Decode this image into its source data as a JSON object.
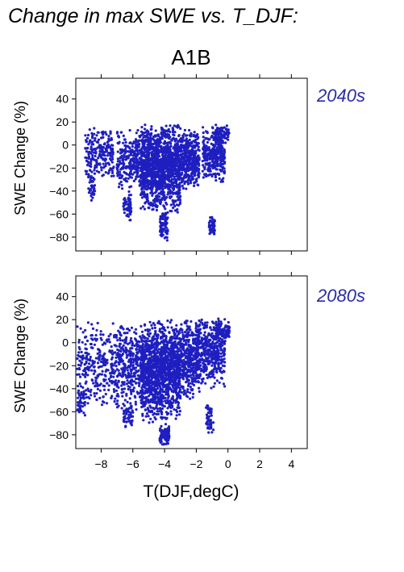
{
  "heading": "Change in max SWE vs. T_DJF:",
  "colors": {
    "points": "#1f1fc0",
    "period_label": "#2a2aa8",
    "axis": "#000000"
  },
  "chart_data": [
    {
      "type": "scatter",
      "title": "A1B",
      "panel_label": "2040s",
      "xlabel": "",
      "ylabel": "SWE Change (%)",
      "xlim": [
        -9.6,
        5
      ],
      "ylim": [
        -92,
        58
      ],
      "yticks": [
        40,
        20,
        0,
        -20,
        -40,
        -60,
        -80
      ],
      "grid": false,
      "clusters": [
        {
          "x": [
            -9.0,
            -7.2
          ],
          "y": [
            -30,
            15
          ],
          "n": 220
        },
        {
          "x": [
            -8.8,
            -8.4
          ],
          "y": [
            -50,
            -20
          ],
          "n": 40
        },
        {
          "x": [
            -7.0,
            -5.5
          ],
          "y": [
            -40,
            15
          ],
          "n": 260
        },
        {
          "x": [
            -6.6,
            -6.1
          ],
          "y": [
            -68,
            -40
          ],
          "n": 60
        },
        {
          "x": [
            -5.5,
            -3.0
          ],
          "y": [
            -60,
            20
          ],
          "n": 1300
        },
        {
          "x": [
            -4.3,
            -3.8
          ],
          "y": [
            -86,
            -55
          ],
          "n": 70
        },
        {
          "x": [
            -3.0,
            -1.8
          ],
          "y": [
            -40,
            15
          ],
          "n": 380
        },
        {
          "x": [
            -1.6,
            -0.2
          ],
          "y": [
            -35,
            18
          ],
          "n": 320
        },
        {
          "x": [
            -1.2,
            -0.8
          ],
          "y": [
            -80,
            -60
          ],
          "n": 60
        },
        {
          "x": [
            -0.8,
            0.1
          ],
          "y": [
            0,
            18
          ],
          "n": 90
        }
      ]
    },
    {
      "type": "scatter",
      "title": "",
      "panel_label": "2080s",
      "xlabel": "T(DJF,degC)",
      "ylabel": "SWE Change (%)",
      "xlim": [
        -9.6,
        5
      ],
      "ylim": [
        -92,
        58
      ],
      "yticks": [
        40,
        20,
        0,
        -20,
        -40,
        -60,
        -80
      ],
      "xticks": [
        -8,
        -6,
        -4,
        -2,
        0,
        2,
        4
      ],
      "grid": false,
      "clusters": [
        {
          "x": [
            -9.5,
            -7.0
          ],
          "y": [
            -60,
            20
          ],
          "n": 300
        },
        {
          "x": [
            -9.5,
            -9.0
          ],
          "y": [
            -65,
            -40
          ],
          "n": 40
        },
        {
          "x": [
            -7.0,
            -5.5
          ],
          "y": [
            -60,
            20
          ],
          "n": 300
        },
        {
          "x": [
            -6.6,
            -6.0
          ],
          "y": [
            -75,
            -50
          ],
          "n": 50
        },
        {
          "x": [
            -5.5,
            -3.0
          ],
          "y": [
            -70,
            22
          ],
          "n": 1400
        },
        {
          "x": [
            -4.3,
            -3.7
          ],
          "y": [
            -90,
            -70
          ],
          "n": 80
        },
        {
          "x": [
            -3.0,
            -1.8
          ],
          "y": [
            -50,
            22
          ],
          "n": 420
        },
        {
          "x": [
            -1.8,
            -0.2
          ],
          "y": [
            -40,
            24
          ],
          "n": 360
        },
        {
          "x": [
            -1.4,
            -0.9
          ],
          "y": [
            -82,
            -50
          ],
          "n": 60
        },
        {
          "x": [
            -0.8,
            0.1
          ],
          "y": [
            0,
            22
          ],
          "n": 100
        }
      ]
    }
  ]
}
